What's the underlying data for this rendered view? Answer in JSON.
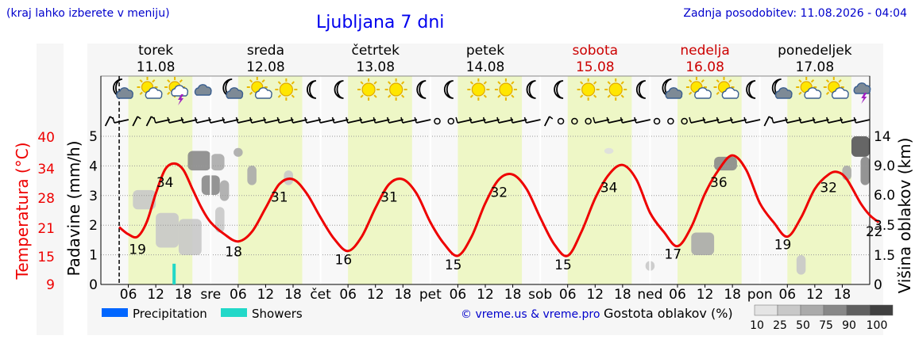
{
  "header": {
    "left_note": "(kraj lahko izberete v meniju)",
    "title": "Ljubljana 7 dni",
    "updated": "Zadnja posodobitev: 11.08.2026 - 04:04"
  },
  "colors": {
    "weekday": "#000000",
    "weekend": "#cc0000",
    "temperature_line": "#ee0000",
    "daytime_band": "#eef7c6",
    "precipitation": "#0066ff",
    "showers": "#22d8c8",
    "now_marker": "#000000"
  },
  "days": [
    {
      "name": "torek",
      "date": "11.08",
      "weekend": false,
      "icons": [
        "moon-cloud-icon",
        "sun-cloud-icon",
        "sun-storm-icon",
        "cloud-icon"
      ],
      "winds": [
        "n",
        "w",
        "n",
        "n",
        "w",
        "w",
        "w",
        "w"
      ]
    },
    {
      "name": "sreda",
      "date": "12.08",
      "weekend": false,
      "icons": [
        "moon-cloud-icon",
        "sun-cloud-icon",
        "sun-icon",
        "moon-icon"
      ],
      "winds": [
        "w",
        "w",
        "w",
        "w",
        "w",
        "w",
        "w",
        "w"
      ]
    },
    {
      "name": "četrtek",
      "date": "13.08",
      "weekend": false,
      "icons": [
        "moon-icon",
        "sun-icon",
        "sun-icon",
        "moon-icon"
      ],
      "winds": [
        "w",
        "w",
        "w",
        "w",
        "w",
        "w",
        "w",
        "w"
      ]
    },
    {
      "name": "petek",
      "date": "14.08",
      "weekend": false,
      "icons": [
        "moon-icon",
        "sun-icon",
        "sun-icon",
        "moon-icon"
      ],
      "winds": [
        "calm",
        "calm",
        "w",
        "w",
        "w",
        "w",
        "w",
        "w"
      ]
    },
    {
      "name": "sobota",
      "date": "15.08",
      "weekend": true,
      "icons": [
        "moon-icon",
        "sun-icon",
        "sun-icon",
        "moon-icon"
      ],
      "winds": [
        "n",
        "calm",
        "calm",
        "calm",
        "w",
        "w",
        "w",
        "w"
      ]
    },
    {
      "name": "nedelja",
      "date": "16.08",
      "weekend": true,
      "icons": [
        "moon-cloud-icon",
        "sun-cloud-icon",
        "sun-cloud-icon",
        "moon-icon"
      ],
      "winds": [
        "calm",
        "calm",
        "calm",
        "w",
        "w",
        "w",
        "w",
        "w"
      ]
    },
    {
      "name": "ponedeljek",
      "date": "17.08",
      "weekend": false,
      "icons": [
        "moon-cloud-icon",
        "sun-cloud-icon",
        "sun-cloud-icon",
        "cloud-storm-icon"
      ],
      "winds": [
        "n",
        "w",
        "w",
        "w",
        "w",
        "w",
        "w",
        "w"
      ]
    }
  ],
  "chart_data": {
    "type": "line",
    "x_unit": "hour",
    "day_axis_labels": [
      "sre",
      "čet",
      "pet",
      "sob",
      "ned",
      "pon"
    ],
    "hour_tick_labels": [
      "06",
      "12",
      "18"
    ],
    "ylabel_temperature": "Temperatura (°C)",
    "ylabel_precipitation": "Padavine (mm/h)",
    "ylabel_cloud": "Višina oblakov (km)",
    "temperature_ticks": [
      "9",
      "15",
      "21",
      "28",
      "34",
      "40"
    ],
    "precipitation_ticks": [
      "0",
      "1",
      "2",
      "3",
      "4",
      "5"
    ],
    "cloud_height_ticks": [
      "0",
      "1.5",
      "3.5",
      "6.0",
      "9.0",
      "14"
    ],
    "precip_range": [
      0,
      5
    ],
    "temperature_range": [
      9,
      40
    ],
    "grid": true,
    "series": [
      {
        "name": "Temperatura (°C)",
        "type": "line",
        "points": [
          [
            4,
            21
          ],
          [
            6,
            19.5
          ],
          [
            8,
            19
          ],
          [
            10,
            22
          ],
          [
            12,
            28
          ],
          [
            14,
            33
          ],
          [
            16,
            34.3
          ],
          [
            18,
            33
          ],
          [
            20,
            29
          ],
          [
            22,
            25
          ],
          [
            24,
            22
          ],
          [
            27,
            19.5
          ],
          [
            30,
            18
          ],
          [
            33,
            20
          ],
          [
            36,
            25
          ],
          [
            39,
            30
          ],
          [
            42,
            31
          ],
          [
            45,
            28
          ],
          [
            48,
            23
          ],
          [
            51,
            18.5
          ],
          [
            54,
            16
          ],
          [
            57,
            19
          ],
          [
            60,
            25
          ],
          [
            63,
            30
          ],
          [
            66,
            31
          ],
          [
            69,
            28
          ],
          [
            72,
            22
          ],
          [
            75,
            17.5
          ],
          [
            78,
            15
          ],
          [
            81,
            19
          ],
          [
            84,
            26
          ],
          [
            87,
            31
          ],
          [
            90,
            32
          ],
          [
            93,
            29
          ],
          [
            96,
            23
          ],
          [
            99,
            17.5
          ],
          [
            102,
            15
          ],
          [
            105,
            20
          ],
          [
            108,
            27
          ],
          [
            111,
            32
          ],
          [
            114,
            34
          ],
          [
            117,
            31
          ],
          [
            120,
            24
          ],
          [
            123,
            20
          ],
          [
            126,
            17
          ],
          [
            129,
            21
          ],
          [
            132,
            28
          ],
          [
            135,
            33
          ],
          [
            138,
            36
          ],
          [
            141,
            33
          ],
          [
            144,
            26
          ],
          [
            147,
            22
          ],
          [
            150,
            19
          ],
          [
            153,
            23
          ],
          [
            156,
            29
          ],
          [
            159,
            32
          ],
          [
            161,
            32.5
          ],
          [
            163,
            31
          ],
          [
            166,
            26
          ],
          [
            168,
            23.5
          ],
          [
            170,
            22
          ]
        ]
      },
      {
        "name": "Precipitation",
        "type": "bar",
        "points": []
      },
      {
        "name": "Showers",
        "type": "bar",
        "points": [
          [
            16,
            0.7
          ]
        ]
      }
    ],
    "temperature_labels": [
      {
        "hour": 8,
        "value": "19"
      },
      {
        "hour": 14,
        "value": "34"
      },
      {
        "hour": 29,
        "value": "18"
      },
      {
        "hour": 39,
        "value": "31"
      },
      {
        "hour": 53,
        "value": "16"
      },
      {
        "hour": 63,
        "value": "31"
      },
      {
        "hour": 77,
        "value": "15"
      },
      {
        "hour": 87,
        "value": "32"
      },
      {
        "hour": 101,
        "value": "15"
      },
      {
        "hour": 111,
        "value": "34"
      },
      {
        "hour": 125,
        "value": "17"
      },
      {
        "hour": 135,
        "value": "36"
      },
      {
        "hour": 149,
        "value": "19"
      },
      {
        "hour": 159,
        "value": "32"
      },
      {
        "hour": 169,
        "value": "22"
      }
    ],
    "now_hour": 4,
    "cloud_cover_patches": [
      {
        "h0": 7,
        "h1": 12,
        "km0": 4.8,
        "km1": 6.5,
        "cover": 25
      },
      {
        "h0": 12,
        "h1": 17,
        "km0": 2.0,
        "km1": 4.5,
        "cover": 40
      },
      {
        "h0": 17,
        "h1": 22,
        "km0": 1.5,
        "km1": 4.0,
        "cover": 25
      },
      {
        "h0": 19,
        "h1": 24,
        "km0": 8.5,
        "km1": 11.5,
        "cover": 75
      },
      {
        "h0": 24,
        "h1": 27,
        "km0": 8.5,
        "km1": 11.0,
        "cover": 50
      },
      {
        "h0": 22,
        "h1": 26,
        "km0": 6.0,
        "km1": 8.0,
        "cover": 75
      },
      {
        "h0": 26,
        "h1": 28,
        "km0": 5.5,
        "km1": 7.5,
        "cover": 50
      },
      {
        "h0": 25,
        "h1": 27,
        "km0": 3.0,
        "km1": 5.0,
        "cover": 25
      },
      {
        "h0": 29,
        "h1": 31,
        "km0": 10.5,
        "km1": 12.0,
        "cover": 50
      },
      {
        "h0": 32,
        "h1": 34,
        "km0": 7.0,
        "km1": 9.0,
        "cover": 50
      },
      {
        "h0": 40,
        "h1": 42,
        "km0": 7.0,
        "km1": 8.5,
        "cover": 25
      },
      {
        "h0": 129,
        "h1": 134,
        "km0": 1.5,
        "km1": 3.0,
        "cover": 50
      },
      {
        "h0": 134,
        "h1": 139,
        "km0": 8.5,
        "km1": 10.5,
        "cover": 75
      },
      {
        "h0": 152,
        "h1": 154,
        "km0": 0.5,
        "km1": 1.5,
        "cover": 25
      },
      {
        "h0": 164,
        "h1": 168,
        "km0": 10.5,
        "km1": 14.0,
        "cover": 90
      },
      {
        "h0": 166,
        "h1": 168,
        "km0": 7.0,
        "km1": 10.5,
        "cover": 75
      },
      {
        "h0": 162,
        "h1": 164,
        "km0": 7.5,
        "km1": 9.0,
        "cover": 50
      },
      {
        "h0": 110,
        "h1": 112,
        "km0": 11.0,
        "km1": 12.0,
        "cover": 10
      },
      {
        "h0": 119,
        "h1": 121,
        "km0": 0.7,
        "km1": 1.2,
        "cover": 25
      }
    ]
  },
  "legend": {
    "precipitation_label": "Precipitation",
    "showers_label": "Showers",
    "copyright": "© vreme.us & vreme.pro",
    "cloud_cover_label": "Gostota oblakov (%)",
    "cloud_cover_values": [
      "10",
      "25",
      "50",
      "75",
      "90",
      "100"
    ]
  }
}
